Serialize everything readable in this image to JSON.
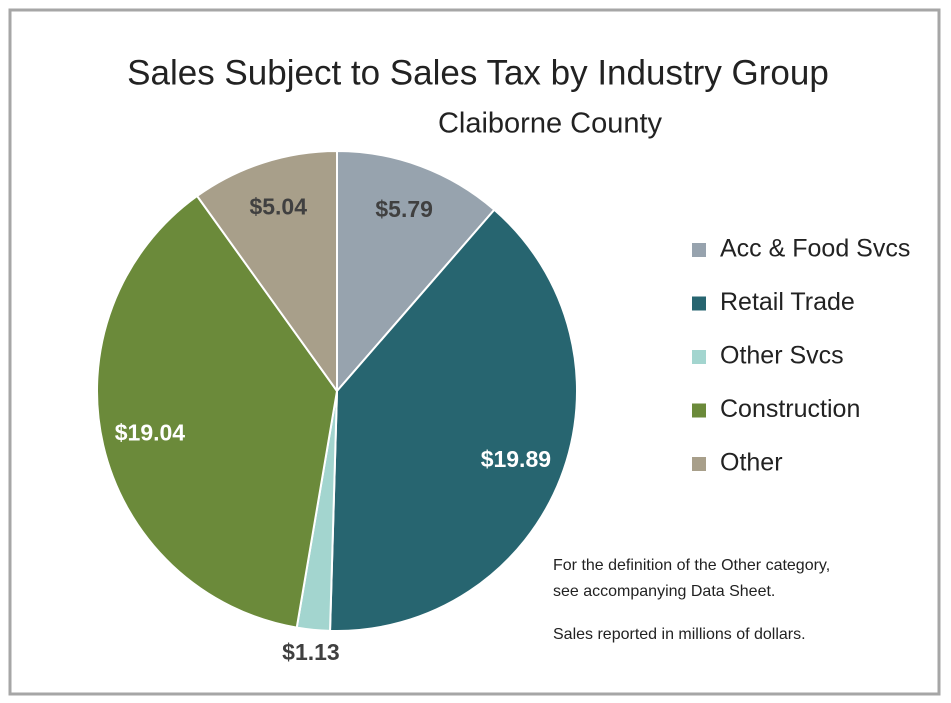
{
  "chart_data": {
    "type": "pie",
    "title": "Sales Subject to Sales Tax by Industry Group",
    "subtitle": "Claiborne County",
    "categories": [
      "Acc & Food Svcs",
      "Retail Trade",
      "Other Svcs",
      "Construction",
      "Other"
    ],
    "values": [
      5.79,
      19.89,
      1.13,
      19.04,
      5.04
    ],
    "value_labels": [
      "$5.79",
      "$19.89",
      "$1.13",
      "$19.04",
      "$5.04"
    ],
    "colors": [
      "#97a3ae",
      "#276570",
      "#a3d5cf",
      "#6b8a3a",
      "#a89f8a"
    ],
    "legend": "right",
    "notes": [
      "For the definition of the Other category,",
      "see accompanying Data Sheet.",
      "Sales reported in millions of dollars."
    ]
  }
}
